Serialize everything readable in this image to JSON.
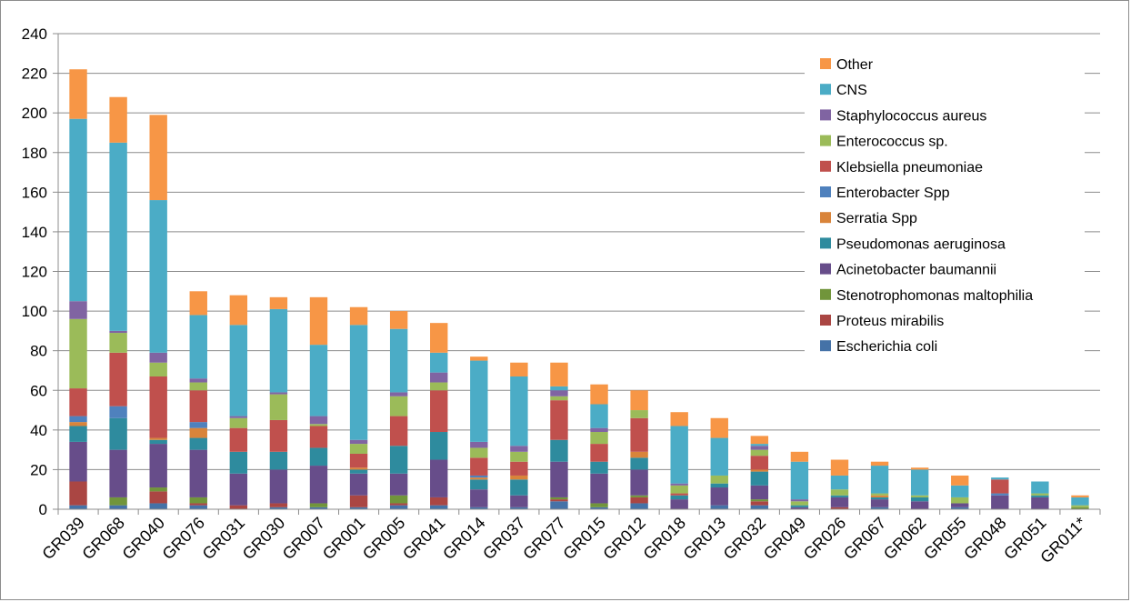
{
  "chart_data": {
    "type": "bar",
    "stacked": true,
    "categories": [
      "GR039",
      "GR068",
      "GR040",
      "GR076",
      "GR031",
      "GR030",
      "GR007",
      "GR001",
      "GR005",
      "GR041",
      "GR014",
      "GR037",
      "GR077",
      "GR015",
      "GR012",
      "GR018",
      "GR013",
      "GR032",
      "GR049",
      "GR026",
      "GR067",
      "GR062",
      "GR055",
      "GR048",
      "GR051",
      "GR011*"
    ],
    "ylim": [
      0,
      240
    ],
    "yticks": [
      "0",
      "20",
      "40",
      "60",
      "80",
      "100",
      "120",
      "140",
      "160",
      "180",
      "200",
      "220",
      "240"
    ],
    "grid": true,
    "legend_position": "top-right",
    "series": [
      {
        "name": "Escherichia coli",
        "color": "#4572A7",
        "values": [
          2,
          2,
          3,
          2,
          0,
          1,
          1,
          1,
          2,
          2,
          1,
          1,
          4,
          1,
          3,
          0,
          2,
          2,
          0,
          0,
          1,
          0,
          1,
          0,
          0,
          0
        ]
      },
      {
        "name": "Proteus mirabilis",
        "color": "#AA4643",
        "values": [
          12,
          0,
          6,
          1,
          2,
          2,
          0,
          6,
          1,
          4,
          0,
          0,
          1,
          0,
          3,
          0,
          0,
          2,
          0,
          1,
          0,
          0,
          0,
          0,
          0,
          0
        ]
      },
      {
        "name": "Stenotrophomonas maltophilia",
        "color": "#71953B",
        "values": [
          0,
          4,
          2,
          3,
          0,
          0,
          2,
          0,
          4,
          0,
          0,
          0,
          1,
          2,
          1,
          0,
          0,
          1,
          0,
          0,
          0,
          0,
          0,
          0,
          0,
          1
        ]
      },
      {
        "name": "Acinetobacter baumannii",
        "color": "#674D8A",
        "values": [
          20,
          24,
          22,
          24,
          16,
          17,
          19,
          11,
          11,
          19,
          9,
          6,
          18,
          15,
          13,
          5,
          9,
          7,
          1,
          5,
          4,
          4,
          2,
          7,
          6,
          0
        ]
      },
      {
        "name": "Pseudomonas aeruginosa",
        "color": "#2E8B9E",
        "values": [
          8,
          16,
          2,
          6,
          11,
          9,
          9,
          2,
          14,
          14,
          5,
          8,
          11,
          6,
          6,
          2,
          2,
          7,
          1,
          1,
          1,
          2,
          0,
          0,
          1,
          0
        ]
      },
      {
        "name": "Serratia Spp",
        "color": "#D9843A",
        "values": [
          2,
          0,
          1,
          5,
          0,
          0,
          0,
          1,
          0,
          0,
          1,
          2,
          0,
          0,
          3,
          0,
          0,
          1,
          0,
          0,
          1,
          0,
          0,
          0,
          0,
          0
        ]
      },
      {
        "name": "Enterobacter Spp",
        "color": "#4F81BD",
        "values": [
          3,
          6,
          0,
          3,
          0,
          0,
          0,
          0,
          0,
          0,
          1,
          0,
          0,
          0,
          0,
          0,
          0,
          0,
          0,
          0,
          0,
          0,
          0,
          1,
          0,
          0
        ]
      },
      {
        "name": "Klebsiella pneumoniae",
        "color": "#C0504D",
        "values": [
          14,
          27,
          31,
          16,
          12,
          16,
          11,
          7,
          15,
          21,
          9,
          7,
          20,
          9,
          17,
          1,
          0,
          7,
          0,
          0,
          0,
          0,
          0,
          7,
          0,
          0
        ]
      },
      {
        "name": "Enterococcus sp.",
        "color": "#9BBB59",
        "values": [
          35,
          10,
          7,
          4,
          5,
          13,
          1,
          5,
          10,
          4,
          5,
          5,
          2,
          6,
          4,
          4,
          4,
          3,
          2,
          3,
          1,
          1,
          3,
          0,
          1,
          1
        ]
      },
      {
        "name": "Staphylococcus aureus",
        "color": "#8064A2",
        "values": [
          9,
          1,
          5,
          2,
          1,
          1,
          4,
          2,
          2,
          5,
          3,
          3,
          3,
          2,
          0,
          1,
          0,
          2,
          1,
          0,
          0,
          0,
          0,
          0,
          0,
          0
        ]
      },
      {
        "name": "CNS",
        "color": "#4BACC6",
        "values": [
          92,
          95,
          77,
          32,
          46,
          42,
          36,
          58,
          32,
          10,
          41,
          35,
          2,
          12,
          0,
          29,
          19,
          1,
          19,
          7,
          14,
          13,
          6,
          1,
          6,
          4
        ]
      },
      {
        "name": "Other",
        "color": "#F79646",
        "values": [
          25,
          23,
          43,
          12,
          15,
          6,
          24,
          9,
          9,
          15,
          2,
          7,
          12,
          10,
          10,
          7,
          10,
          4,
          5,
          8,
          2,
          1,
          5,
          0,
          0,
          1
        ]
      }
    ]
  }
}
